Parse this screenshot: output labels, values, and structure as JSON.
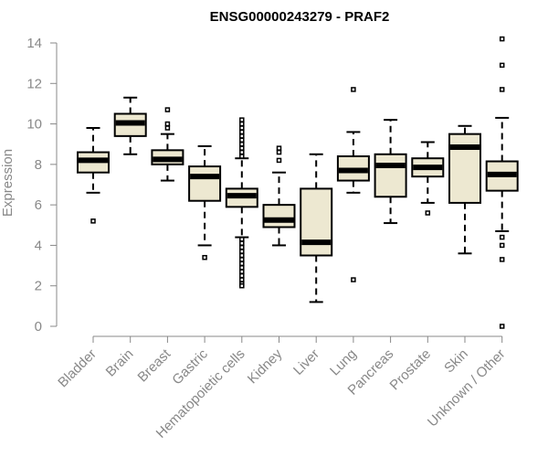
{
  "chart_data": {
    "type": "boxplot",
    "title": "ENSG00000243279 - PRAF2",
    "ylabel": "Expression",
    "xlabel": "",
    "ylim": [
      0,
      14
    ],
    "yticks": [
      0,
      2,
      4,
      6,
      8,
      10,
      12,
      14
    ],
    "grid": false,
    "box_color": "#ede8d1",
    "axis_color": "#888888",
    "categories": [
      "Bladder",
      "Brain",
      "Breast",
      "Gastric",
      "Hematopoietic cells",
      "Kidney",
      "Liver",
      "Lung",
      "Pancreas",
      "Prostate",
      "Skin",
      "Unknown / Other"
    ],
    "boxes": [
      {
        "min": 6.6,
        "q1": 7.6,
        "median": 8.2,
        "q3": 8.6,
        "max": 9.8,
        "outliers": [
          5.2
        ]
      },
      {
        "min": 8.5,
        "q1": 9.4,
        "median": 10.05,
        "q3": 10.5,
        "max": 11.3,
        "outliers": []
      },
      {
        "min": 7.2,
        "q1": 8.0,
        "median": 8.25,
        "q3": 8.7,
        "max": 9.5,
        "outliers": [
          9.8,
          10.0,
          10.7
        ]
      },
      {
        "min": 4.0,
        "q1": 6.2,
        "median": 7.4,
        "q3": 7.9,
        "max": 8.9,
        "outliers": [
          3.4
        ]
      },
      {
        "min": 4.4,
        "q1": 5.9,
        "median": 6.45,
        "q3": 6.8,
        "max": 8.3,
        "outliers": [
          8.4,
          8.6,
          8.8,
          9.0,
          9.2,
          9.4,
          9.6,
          9.8,
          10.0,
          10.2,
          4.3,
          4.1,
          3.9,
          3.7,
          3.5,
          3.3,
          3.1,
          2.9,
          2.7,
          2.5,
          2.3,
          2.1,
          2.0
        ]
      },
      {
        "min": 4.0,
        "q1": 4.9,
        "median": 5.25,
        "q3": 6.0,
        "max": 7.6,
        "outliers": [
          8.2,
          8.6,
          8.8
        ]
      },
      {
        "min": 1.2,
        "q1": 3.5,
        "median": 4.15,
        "q3": 6.8,
        "max": 8.5,
        "outliers": []
      },
      {
        "min": 6.6,
        "q1": 7.2,
        "median": 7.7,
        "q3": 8.4,
        "max": 9.6,
        "outliers": [
          11.7,
          2.3
        ]
      },
      {
        "min": 5.1,
        "q1": 6.4,
        "median": 7.95,
        "q3": 8.5,
        "max": 10.2,
        "outliers": []
      },
      {
        "min": 6.1,
        "q1": 7.4,
        "median": 7.85,
        "q3": 8.3,
        "max": 9.1,
        "outliers": [
          5.6
        ]
      },
      {
        "min": 3.6,
        "q1": 6.1,
        "median": 8.85,
        "q3": 9.5,
        "max": 9.9,
        "outliers": []
      },
      {
        "min": 4.7,
        "q1": 6.7,
        "median": 7.5,
        "q3": 8.15,
        "max": 10.3,
        "outliers": [
          14.2,
          12.9,
          11.7,
          4.4,
          4.0,
          3.3,
          0.0
        ]
      }
    ]
  }
}
